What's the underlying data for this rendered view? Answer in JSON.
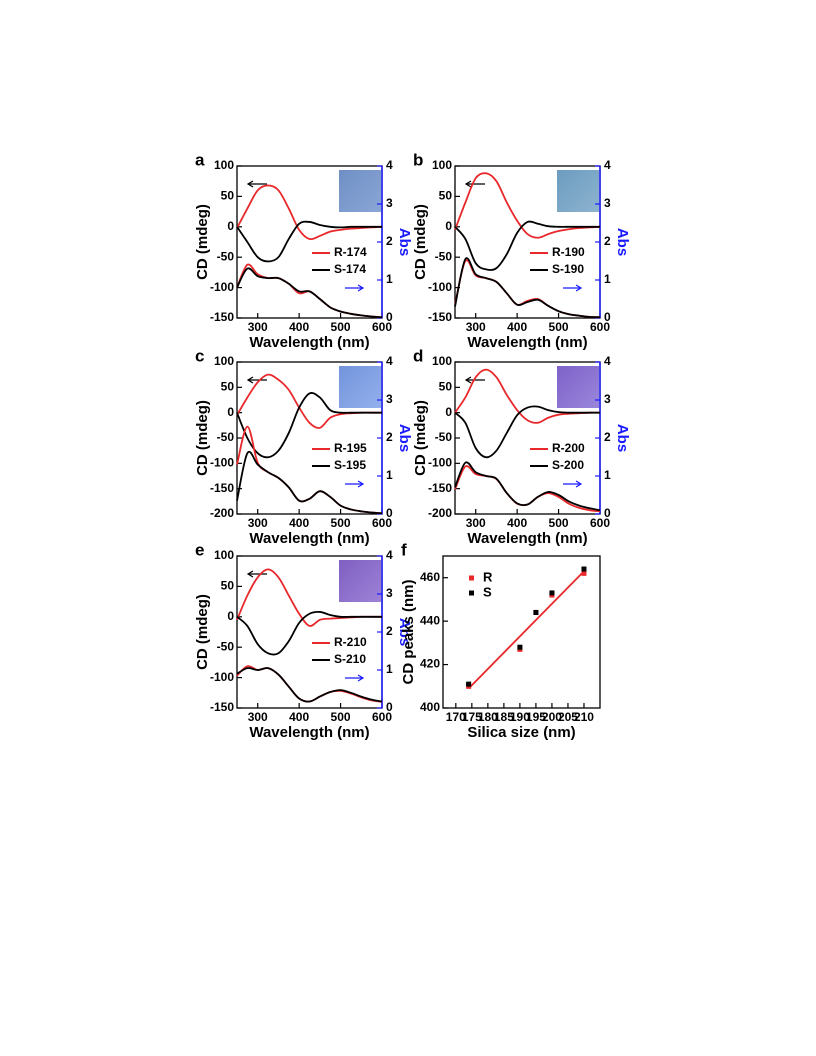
{
  "chart_data": [
    {
      "type": "line",
      "label": "a",
      "xlabel": "Wavelength (nm)",
      "ylabel": "CD (mdeg)",
      "y2label": "Abs",
      "x": [
        250,
        275,
        300,
        325,
        350,
        375,
        400,
        425,
        450,
        475,
        500,
        525,
        550,
        575,
        600
      ],
      "xlim": [
        250,
        600
      ],
      "xticks": [
        300,
        400,
        500,
        600
      ],
      "ylim": [
        -150,
        100
      ],
      "yticks": [
        -150,
        -100,
        -50,
        0,
        50,
        100
      ],
      "y2lim": [
        0,
        4
      ],
      "y2ticks": [
        0,
        1,
        2,
        3,
        4
      ],
      "y2color": "#1a1aff",
      "series": [
        {
          "name": "R-174",
          "color": "#e8282b",
          "values": [
            -2,
            30,
            60,
            68,
            60,
            30,
            -5,
            -20,
            -15,
            -8,
            -5,
            -3,
            -2,
            -1,
            0
          ]
        },
        {
          "name": "S-174",
          "color": "#000000",
          "values": [
            0,
            -25,
            -50,
            -57,
            -50,
            -20,
            5,
            8,
            3,
            0,
            -1,
            0,
            0,
            0,
            0
          ]
        },
        {
          "axis": "y2",
          "color": "#e8282b",
          "values": [
            0.8,
            1.4,
            1.15,
            1.05,
            1.05,
            0.9,
            0.65,
            0.7,
            0.5,
            0.28,
            0.17,
            0.11,
            0.07,
            0.04,
            0.02
          ]
        },
        {
          "axis": "y2",
          "color": "#000000",
          "values": [
            0.8,
            1.3,
            1.1,
            1.05,
            1.05,
            0.9,
            0.7,
            0.7,
            0.5,
            0.28,
            0.17,
            0.11,
            0.07,
            0.04,
            0.02
          ]
        }
      ]
    },
    {
      "type": "line",
      "label": "b",
      "xlabel": "Wavelength (nm)",
      "ylabel": "CD (mdeg)",
      "y2label": "Abs",
      "x": [
        250,
        275,
        300,
        325,
        350,
        375,
        400,
        425,
        450,
        475,
        500,
        525,
        550,
        575,
        600
      ],
      "xlim": [
        250,
        600
      ],
      "xticks": [
        300,
        400,
        500,
        600
      ],
      "ylim": [
        -150,
        100
      ],
      "yticks": [
        -150,
        -100,
        -50,
        0,
        50,
        100
      ],
      "y2lim": [
        0,
        4
      ],
      "y2ticks": [
        0,
        1,
        2,
        3,
        4
      ],
      "y2color": "#1a1aff",
      "series": [
        {
          "name": "R-190",
          "color": "#e8282b",
          "values": [
            -5,
            40,
            80,
            88,
            75,
            40,
            10,
            -12,
            -18,
            -12,
            -7,
            -4,
            -2,
            -1,
            0
          ]
        },
        {
          "name": "S-190",
          "color": "#000000",
          "values": [
            0,
            -20,
            -60,
            -70,
            -68,
            -45,
            -10,
            8,
            5,
            1,
            0,
            0,
            0,
            0,
            0
          ]
        },
        {
          "axis": "y2",
          "color": "#e8282b",
          "values": [
            0.35,
            1.5,
            1.12,
            1.05,
            0.95,
            0.65,
            0.35,
            0.45,
            0.5,
            0.32,
            0.18,
            0.1,
            0.06,
            0.03,
            0.02
          ]
        },
        {
          "axis": "y2",
          "color": "#000000",
          "values": [
            0.3,
            1.55,
            1.15,
            1.05,
            0.95,
            0.65,
            0.35,
            0.42,
            0.48,
            0.32,
            0.18,
            0.1,
            0.06,
            0.03,
            0.02
          ]
        }
      ]
    },
    {
      "type": "line",
      "label": "c",
      "xlabel": "Wavelength (nm)",
      "ylabel": "CD (mdeg)",
      "y2label": "Abs",
      "x": [
        250,
        275,
        300,
        325,
        350,
        375,
        400,
        425,
        450,
        475,
        500,
        525,
        550,
        575,
        600
      ],
      "xlim": [
        250,
        600
      ],
      "xticks": [
        300,
        400,
        500,
        600
      ],
      "ylim": [
        -200,
        100
      ],
      "yticks": [
        -200,
        -150,
        -100,
        -50,
        0,
        50,
        100
      ],
      "y2lim": [
        0,
        4
      ],
      "y2ticks": [
        0,
        1,
        2,
        3,
        4
      ],
      "y2color": "#1a1aff",
      "series": [
        {
          "name": "R-195",
          "color": "#e8282b",
          "values": [
            -5,
            30,
            60,
            75,
            65,
            45,
            10,
            -20,
            -30,
            -10,
            -3,
            -1,
            0,
            0,
            0
          ]
        },
        {
          "name": "S-195",
          "color": "#000000",
          "values": [
            0,
            -50,
            -80,
            -88,
            -75,
            -40,
            10,
            38,
            30,
            5,
            0,
            0,
            0,
            0,
            0
          ]
        },
        {
          "axis": "y2",
          "color": "#e8282b",
          "values": [
            1.3,
            2.3,
            1.35,
            1.1,
            0.95,
            0.7,
            0.35,
            0.4,
            0.6,
            0.45,
            0.22,
            0.12,
            0.07,
            0.04,
            0.02
          ]
        },
        {
          "axis": "y2",
          "color": "#000000",
          "values": [
            0.35,
            1.6,
            1.3,
            1.1,
            0.95,
            0.7,
            0.35,
            0.4,
            0.6,
            0.45,
            0.22,
            0.12,
            0.07,
            0.04,
            0.02
          ]
        }
      ]
    },
    {
      "type": "line",
      "label": "d",
      "xlabel": "Wavelength (nm)",
      "ylabel": "CD (mdeg)",
      "y2label": "Abs",
      "x": [
        250,
        275,
        300,
        325,
        350,
        375,
        400,
        425,
        450,
        475,
        500,
        525,
        550,
        575,
        600
      ],
      "xlim": [
        250,
        600
      ],
      "xticks": [
        300,
        400,
        500,
        600
      ],
      "ylim": [
        -200,
        100
      ],
      "yticks": [
        -200,
        -150,
        -100,
        -50,
        0,
        50,
        100
      ],
      "y2lim": [
        0,
        4
      ],
      "y2ticks": [
        0,
        1,
        2,
        3,
        4
      ],
      "y2color": "#1a1aff",
      "series": [
        {
          "name": "R-200",
          "color": "#e8282b",
          "values": [
            0,
            30,
            70,
            85,
            70,
            35,
            5,
            -15,
            -20,
            -10,
            -4,
            -2,
            -1,
            0,
            0
          ]
        },
        {
          "name": "S-200",
          "color": "#000000",
          "values": [
            0,
            -20,
            -70,
            -88,
            -75,
            -40,
            -5,
            10,
            12,
            5,
            1,
            0,
            0,
            0,
            0
          ]
        },
        {
          "axis": "y2",
          "color": "#e8282b",
          "values": [
            0.65,
            1.25,
            1.05,
            1.0,
            0.92,
            0.55,
            0.27,
            0.25,
            0.45,
            0.55,
            0.45,
            0.27,
            0.16,
            0.1,
            0.07
          ]
        },
        {
          "axis": "y2",
          "color": "#000000",
          "values": [
            0.7,
            1.35,
            1.1,
            1.0,
            0.93,
            0.55,
            0.28,
            0.25,
            0.45,
            0.58,
            0.5,
            0.33,
            0.22,
            0.15,
            0.1
          ]
        }
      ]
    },
    {
      "type": "line",
      "label": "e",
      "xlabel": "Wavelength (nm)",
      "ylabel": "CD (mdeg)",
      "y2label": "Abs",
      "x": [
        250,
        275,
        300,
        325,
        350,
        375,
        400,
        425,
        450,
        475,
        500,
        525,
        550,
        575,
        600
      ],
      "xlim": [
        250,
        600
      ],
      "xticks": [
        300,
        400,
        500,
        600
      ],
      "ylim": [
        -150,
        100
      ],
      "yticks": [
        -150,
        -100,
        -50,
        0,
        50,
        100
      ],
      "y2lim": [
        0,
        4
      ],
      "y2ticks": [
        0,
        1,
        2,
        3,
        4
      ],
      "y2color": "#1a1aff",
      "series": [
        {
          "name": "R-210",
          "color": "#e8282b",
          "values": [
            -5,
            35,
            65,
            78,
            65,
            35,
            5,
            -15,
            -5,
            -3,
            -2,
            -1,
            0,
            0,
            0
          ]
        },
        {
          "name": "S-210",
          "color": "#000000",
          "values": [
            0,
            -15,
            -45,
            -60,
            -60,
            -40,
            -10,
            5,
            8,
            3,
            0,
            0,
            0,
            0,
            0
          ]
        },
        {
          "axis": "y2",
          "color": "#e8282b",
          "values": [
            0.85,
            1.1,
            1.0,
            1.05,
            0.88,
            0.56,
            0.25,
            0.17,
            0.3,
            0.42,
            0.45,
            0.38,
            0.28,
            0.2,
            0.16
          ]
        },
        {
          "axis": "y2",
          "color": "#000000",
          "values": [
            0.9,
            1.05,
            1.0,
            1.05,
            0.88,
            0.56,
            0.25,
            0.17,
            0.3,
            0.42,
            0.47,
            0.4,
            0.3,
            0.22,
            0.17
          ]
        }
      ]
    },
    {
      "type": "scatter",
      "label": "f",
      "xlabel": "Silica size (nm)",
      "ylabel": "CD peaks (nm)",
      "xlim": [
        166,
        215
      ],
      "xticks": [
        170,
        175,
        180,
        185,
        190,
        195,
        200,
        205,
        210
      ],
      "ylim": [
        400,
        470
      ],
      "yticks": [
        400,
        420,
        440,
        460
      ],
      "series": [
        {
          "name": "R",
          "color": "#e8282b",
          "x": [
            174,
            190,
            195,
            200,
            210
          ],
          "values": [
            410,
            427,
            444,
            452,
            462
          ]
        },
        {
          "name": "S",
          "color": "#000000",
          "x": [
            174,
            190,
            195,
            200,
            210
          ],
          "values": [
            411,
            428,
            444,
            453,
            464
          ]
        }
      ],
      "fit": {
        "color": "#e8282b",
        "x": [
          174,
          210
        ],
        "values": [
          409,
          463
        ]
      }
    }
  ]
}
